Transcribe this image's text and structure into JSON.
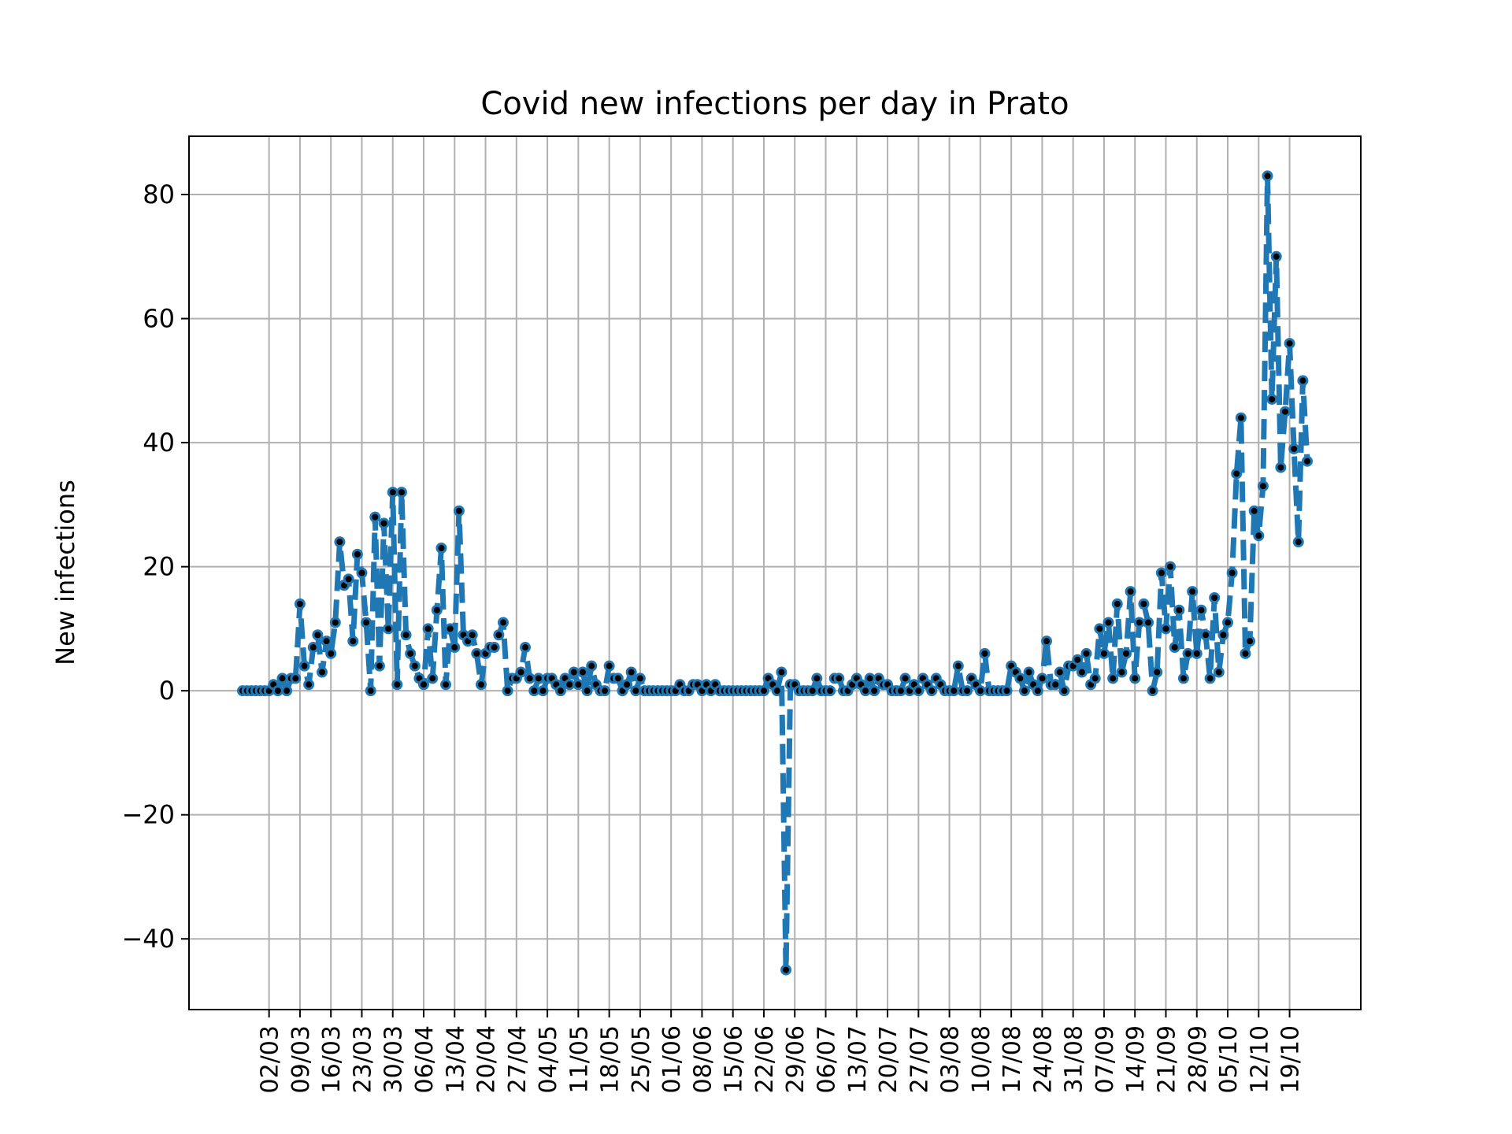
{
  "chart_data": {
    "type": "line",
    "title": "Covid new infections per day in Prato",
    "xlabel": "",
    "ylabel": "New infections",
    "ylim": [
      -51.4,
      89.4
    ],
    "yticks": [
      -40,
      -20,
      0,
      20,
      40,
      60,
      80
    ],
    "ytick_labels": [
      "−40",
      "−20",
      "0",
      "20",
      "40",
      "60",
      "80"
    ],
    "xticks": [
      "02/03",
      "09/03",
      "16/03",
      "23/03",
      "30/03",
      "06/04",
      "13/04",
      "20/04",
      "27/04",
      "04/05",
      "11/05",
      "18/05",
      "25/05",
      "01/06",
      "08/06",
      "15/06",
      "22/06",
      "29/06",
      "06/07",
      "13/07",
      "20/07",
      "27/07",
      "03/08",
      "10/08",
      "17/08",
      "24/08",
      "31/08",
      "07/09",
      "14/09",
      "21/09",
      "28/09",
      "05/10",
      "12/10",
      "19/10"
    ],
    "grid": true,
    "colors": {
      "line": "#1f77b4",
      "marker": "#000000",
      "grid": "#b0b0b0"
    },
    "series": [
      {
        "start_date": "2020-02-25",
        "values": [
          0,
          0,
          0,
          0,
          0,
          0,
          0,
          1,
          0,
          2,
          0,
          2,
          2,
          14,
          4,
          1,
          7,
          9,
          3,
          8,
          6,
          11,
          24,
          17,
          18,
          8,
          22,
          19,
          11,
          0,
          28,
          4,
          27,
          10,
          32,
          1,
          32,
          9,
          6,
          4,
          2,
          1,
          10,
          2,
          13,
          23,
          1,
          10,
          7,
          29,
          9,
          8,
          9,
          6,
          1,
          6,
          7,
          7,
          9,
          11,
          0,
          2,
          2,
          3,
          7,
          2,
          0,
          2,
          0,
          2,
          2,
          1,
          0,
          2,
          1,
          3,
          1,
          3,
          0,
          4,
          1,
          0,
          0,
          4,
          2,
          2,
          0,
          1,
          3,
          0,
          2,
          0,
          0,
          0,
          0,
          0,
          0,
          0,
          0,
          1,
          0,
          0,
          1,
          1,
          0,
          1,
          0,
          1,
          0,
          0,
          0,
          0,
          0,
          0,
          0,
          0,
          0,
          0,
          0,
          2,
          1,
          0,
          3,
          -45,
          1,
          1,
          0,
          0,
          0,
          0,
          2,
          0,
          0,
          0,
          2,
          2,
          0,
          0,
          1,
          2,
          1,
          0,
          2,
          0,
          2,
          1,
          1,
          0,
          0,
          0,
          2,
          0,
          1,
          0,
          2,
          1,
          0,
          2,
          1,
          0,
          0,
          0,
          4,
          0,
          0,
          2,
          1,
          0,
          6,
          0,
          0,
          0,
          0,
          0,
          4,
          3,
          2,
          0,
          3,
          1,
          0,
          2,
          8,
          1,
          1,
          3,
          0,
          4,
          4,
          5,
          3,
          6,
          1,
          2,
          10,
          6,
          11,
          2,
          14,
          3,
          6,
          16,
          2,
          11,
          14,
          11,
          0,
          3,
          19,
          10,
          20,
          7,
          13,
          2,
          6,
          16,
          6,
          13,
          9,
          2,
          15,
          3,
          9,
          11,
          19,
          35,
          44,
          6,
          8,
          29,
          25,
          33,
          83,
          47,
          70,
          36,
          45,
          56,
          39,
          24,
          50,
          37
        ]
      }
    ]
  }
}
